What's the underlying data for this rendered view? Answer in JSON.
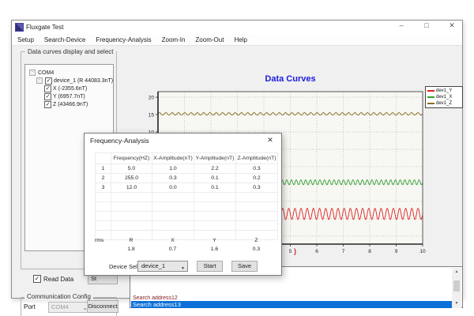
{
  "window": {
    "title": "Fluxgate Test",
    "minimize_glyph": "–",
    "maximize_glyph": "□",
    "close_glyph": "✕"
  },
  "menu_items": [
    "Setup",
    "Search-Device",
    "Frequency-Analysis",
    "Zoom-In",
    "Zoom-Out",
    "Help"
  ],
  "device_panel": {
    "group_title": "Data curves display and select",
    "tree": {
      "root_label": "COM4",
      "device_label": "device_1  (R 44083.3nT)",
      "device_checked": true,
      "channels": [
        {
          "label": "X (-2355.6nT)",
          "checked": true
        },
        {
          "label": "Y (6957.7nT)",
          "checked": true
        },
        {
          "label": "Z (43466.9nT)",
          "checked": true
        }
      ]
    }
  },
  "chart_data": {
    "type": "line",
    "title": "Data Curves",
    "title_color": "#1b1bdf",
    "xlim": [
      0,
      10
    ],
    "ylim": [
      -22.3,
      21.6
    ],
    "x_ticks": [
      0,
      1,
      2,
      3,
      4,
      5,
      6,
      7,
      8,
      9,
      10
    ],
    "x_ticks_visible": [
      6,
      7,
      8,
      9,
      10
    ],
    "y_ticks": [
      -20,
      -15,
      -10,
      -5,
      0,
      5,
      10,
      15,
      20
    ],
    "y_ticks_visible": [
      0,
      5,
      10,
      15,
      20
    ],
    "grid": true,
    "grid_style": "dotted",
    "legend_position": "outside-top-right",
    "xlabel_visible_fragment": ")",
    "xlabel_fragment_color": "#cc2222",
    "series": [
      {
        "name": "dev1_Y",
        "color": "#dd2222",
        "waveform": "sine",
        "mean": -13.6,
        "amplitude": 1.6,
        "cycles_per_unit": 4.3
      },
      {
        "name": "dev1_X",
        "color": "#2f9e2f",
        "waveform": "sine",
        "mean": -4.5,
        "amplitude": 0.7,
        "cycles_per_unit": 5.6
      },
      {
        "name": "dev1_Z",
        "color": "#8a6a1e",
        "waveform": "sine",
        "mean": 15.2,
        "amplitude": 0.35,
        "cycles_per_unit": 4.2
      }
    ]
  },
  "dialog": {
    "title": "Frequency-Analysis",
    "close_glyph": "✕",
    "table": {
      "col_headers": [
        "",
        "Frequency(HZ)",
        "X-Amplitude(nT)",
        "Y-Amplitude(nT)",
        "Z-Amplitude(nT)"
      ],
      "rows": [
        {
          "index": "1",
          "frequency": "5.0",
          "x_amp": "1.0",
          "y_amp": "2.2",
          "z_amp": "0.3"
        },
        {
          "index": "2",
          "frequency": "255.0",
          "x_amp": "0.3",
          "y_amp": "0.1",
          "z_amp": "0.2"
        },
        {
          "index": "3",
          "frequency": "12.0",
          "x_amp": "0.0",
          "y_amp": "0.1",
          "z_amp": "0.3"
        }
      ],
      "empty_row_count": 5
    },
    "rms": {
      "row_label": "rms",
      "col_headers": [
        "R",
        "X",
        "Y",
        "Z"
      ],
      "values": [
        "1.8",
        "0.7",
        "1.6",
        "0.3"
      ]
    },
    "device_select_label": "Device Select:",
    "device_select_value": "device_1",
    "start_button": "Start",
    "save_button": "Save"
  },
  "footer": {
    "read_data_label": "Read Data",
    "read_data_checked": true,
    "hidden_button_visible_text": "St",
    "comm_group_title": "Communication Config",
    "port_label": "Port",
    "port_value": "COM4",
    "disconnect_label": "Disconnect"
  },
  "log_list": {
    "partial_item_text": "Search address12",
    "partial_item_color": "#7b1f1f",
    "selected_item_text": "Search address13",
    "selected_bg": "#0b6fd7"
  }
}
